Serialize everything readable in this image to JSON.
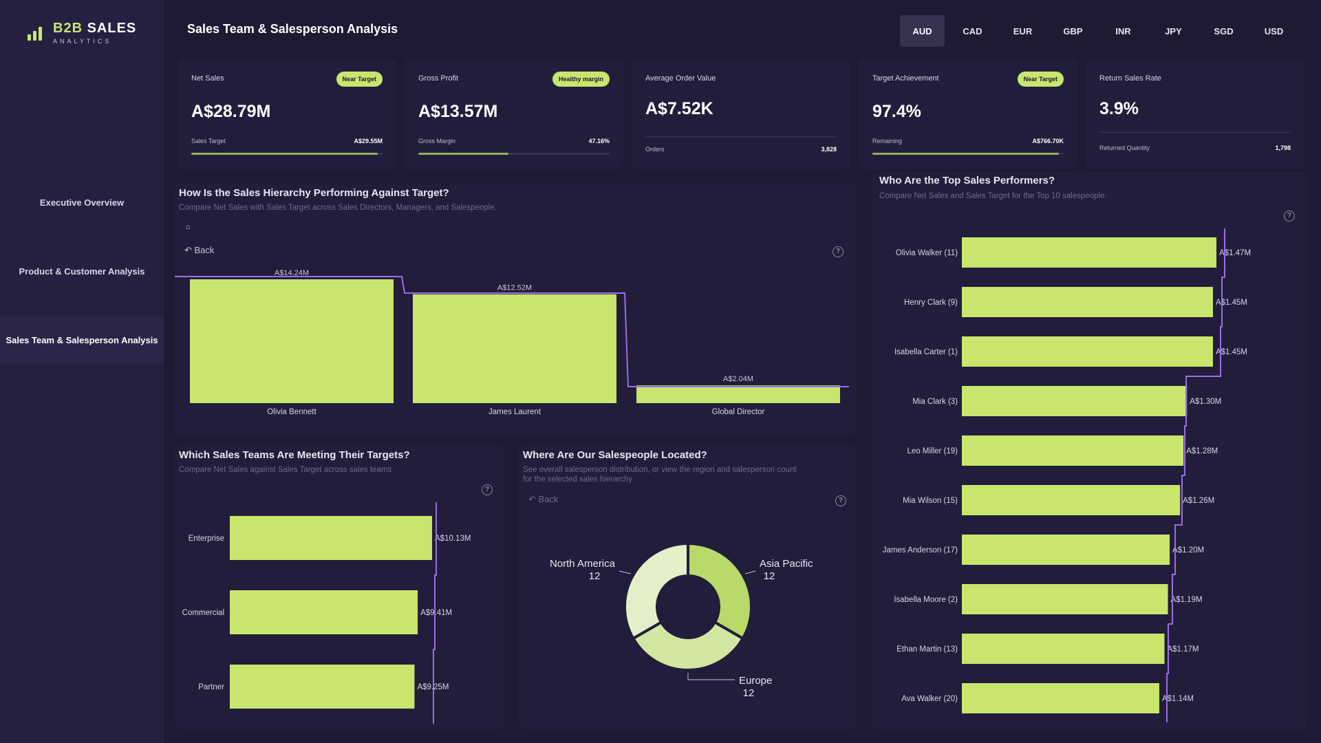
{
  "app": {
    "logo_main": "B2B",
    "logo_accent": "SALES",
    "logo_sub": "ANALYTICS"
  },
  "nav": [
    {
      "label": "Executive Overview",
      "active": false
    },
    {
      "label": "Product & Customer Analysis",
      "active": false
    },
    {
      "label": "Sales Team & Salesperson Analysis",
      "active": true
    }
  ],
  "page_title": "Sales Team & Salesperson Analysis",
  "currencies": [
    "AUD",
    "CAD",
    "EUR",
    "GBP",
    "INR",
    "JPY",
    "SGD",
    "USD"
  ],
  "selected_currency": "AUD",
  "kpis": [
    {
      "title": "Net Sales",
      "badge": "Near Target",
      "value": "A$28.79M",
      "sub_label": "Sales Target",
      "sub_value": "A$29.55M",
      "progress": 0.974
    },
    {
      "title": "Gross Profit",
      "badge": "Healthy margin",
      "value": "A$13.57M",
      "sub_label": "Gross Margin",
      "sub_value": "47.16%",
      "progress": 0.4716
    },
    {
      "title": "Average Order Value",
      "badge": "",
      "value": "A$7.52K",
      "sub_label": "Orders",
      "sub_value": "3,828",
      "progress": null
    },
    {
      "title": "Target Achievement",
      "badge": "Near Target",
      "value": "97.4%",
      "sub_label": "Remaining",
      "sub_value": "A$766.70K",
      "progress": 0.974
    },
    {
      "title": "Return Sales Rate",
      "badge": "",
      "value": "3.9%",
      "sub_label": "Returned Quantity",
      "sub_value": "1,798",
      "progress": null
    }
  ],
  "hierarchy": {
    "title": "How Is the Sales Hierarchy Performing Against Target?",
    "subtitle": "Compare Net Sales with Sales Target across Sales Directors, Managers, and Salespeople.",
    "back": "Back"
  },
  "teams": {
    "title": "Which Sales Teams Are Meeting Their Targets?",
    "subtitle": "Compare Net Sales against Sales Target across sales teams"
  },
  "locations": {
    "title": "Where Are Our Salespeople Located?",
    "subtitle_1": "See overall salesperson distribution, or view the region and salesperson count",
    "subtitle_2": "for the selected sales hierarchy",
    "back": "Back"
  },
  "performers": {
    "title": "Who Are the Top Sales Performers?",
    "subtitle": "Compare Net Sales and Sales Target for the Top 10 salespeople."
  },
  "colors": {
    "accent": "#c8e66e",
    "target_line": "#9a6ee8",
    "background": "#1e1a33",
    "panel": "#221d3a"
  },
  "chart_data": [
    {
      "type": "bar",
      "categories": [
        "Olivia Bennett",
        "James Laurent",
        "Global Director"
      ],
      "series": [
        {
          "values": [
            14.24,
            12.52,
            2.04
          ]
        }
      ],
      "data_labels": [
        "A$14.24M",
        "A$12.52M",
        "A$2.04M"
      ],
      "target_line": true
    },
    {
      "type": "bar",
      "orientation": "horizontal",
      "categories": [
        "Enterprise",
        "Commercial",
        "Partner"
      ],
      "series": [
        {
          "values": [
            10.13,
            9.41,
            9.25
          ]
        }
      ],
      "data_labels": [
        "A$10.13M",
        "A$9.41M",
        "A$9.25M"
      ],
      "target_line": true
    },
    {
      "type": "pie",
      "donut": true,
      "labels": [
        "Asia Pacific",
        "Europe",
        "North America"
      ],
      "values": [
        12,
        12,
        12
      ],
      "colors": [
        "#b9d96a",
        "#d2e6a2",
        "#e4efc8"
      ]
    },
    {
      "type": "bar",
      "orientation": "horizontal",
      "categories": [
        "Olivia Walker (11)",
        "Henry Clark (9)",
        "Isabella Carter (1)",
        "Mia Clark (3)",
        "Leo Miller (19)",
        "Mia Wilson (15)",
        "James Anderson (17)",
        "Isabella Moore (2)",
        "Ethan Martin (13)",
        "Ava Walker (20)"
      ],
      "series": [
        {
          "values": [
            1.47,
            1.45,
            1.45,
            1.3,
            1.28,
            1.26,
            1.2,
            1.19,
            1.17,
            1.14
          ]
        }
      ],
      "data_labels": [
        "A$1.47M",
        "A$1.45M",
        "A$1.45M",
        "A$1.30M",
        "A$1.28M",
        "A$1.26M",
        "A$1.20M",
        "A$1.19M",
        "A$1.17M",
        "A$1.14M"
      ],
      "target_line": true
    }
  ]
}
